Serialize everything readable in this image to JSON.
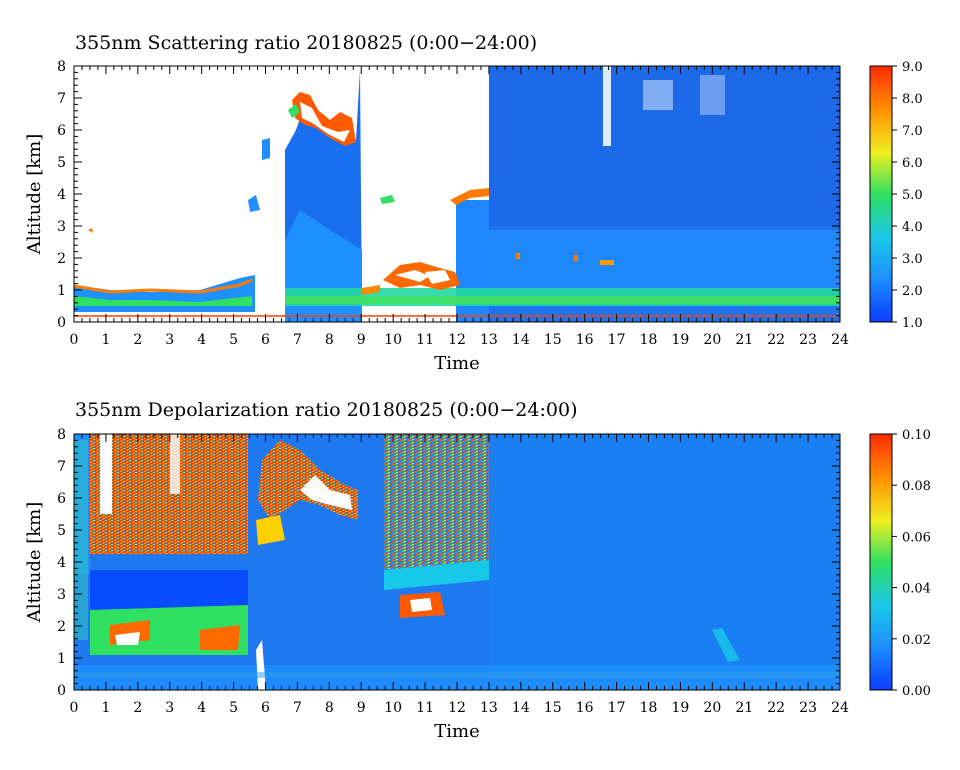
{
  "chart_data": [
    {
      "type": "heatmap",
      "title": "355nm Scattering ratio  20180825 (0:00−24:00)",
      "xlabel": "Time",
      "ylabel": "Altitude [km]",
      "xlim": [
        0,
        24
      ],
      "ylim": [
        0,
        8
      ],
      "x_ticks": [
        "0",
        "1",
        "2",
        "3",
        "4",
        "5",
        "6",
        "7",
        "8",
        "9",
        "10",
        "11",
        "12",
        "13",
        "14",
        "15",
        "16",
        "17",
        "18",
        "19",
        "20",
        "21",
        "22",
        "23",
        "24"
      ],
      "y_ticks": [
        "0",
        "1",
        "2",
        "3",
        "4",
        "5",
        "6",
        "7",
        "8"
      ],
      "colorbar": {
        "range": [
          1.0,
          9.0
        ],
        "ticks": [
          "1.0",
          "2.0",
          "3.0",
          "4.0",
          "5.0",
          "6.0",
          "7.0",
          "8.0",
          "9.0"
        ],
        "colors": [
          "#0a3cff",
          "#1e90ff",
          "#18c8e8",
          "#30e060",
          "#f0f020",
          "#ff9000",
          "#ff2a00"
        ]
      },
      "features": [
        {
          "t": [
            0.0,
            5.5
          ],
          "alt": [
            0.4,
            1.4
          ],
          "sr": 6.5
        },
        {
          "t": [
            6.6,
            9.0
          ],
          "alt": [
            0.0,
            7.8
          ],
          "sr": 2.3
        },
        {
          "t": [
            6.8,
            9.0
          ],
          "alt": [
            5.5,
            7.2
          ],
          "sr": 8.5
        },
        {
          "t": [
            9.7,
            12.0
          ],
          "alt": [
            1.0,
            2.2
          ],
          "sr": 7.5
        },
        {
          "t": [
            12.0,
            13.0
          ],
          "alt": [
            3.5,
            4.1
          ],
          "sr": 5.0
        },
        {
          "t": [
            13.0,
            24.0
          ],
          "alt": [
            0.0,
            8.0
          ],
          "sr": 2.0
        },
        {
          "t": [
            0.0,
            24.0
          ],
          "alt": [
            0.4,
            0.8
          ],
          "sr": 3.8
        }
      ]
    },
    {
      "type": "heatmap",
      "title": "355nm Depolarization ratio  20180825 (0:00−24:00)",
      "xlabel": "Time",
      "ylabel": "Altitude [km]",
      "xlim": [
        0,
        24
      ],
      "ylim": [
        0,
        8
      ],
      "x_ticks": [
        "0",
        "1",
        "2",
        "3",
        "4",
        "5",
        "6",
        "7",
        "8",
        "9",
        "10",
        "11",
        "12",
        "13",
        "14",
        "15",
        "16",
        "17",
        "18",
        "19",
        "20",
        "21",
        "22",
        "23",
        "24"
      ],
      "y_ticks": [
        "0",
        "1",
        "2",
        "3",
        "4",
        "5",
        "6",
        "7",
        "8"
      ],
      "colorbar": {
        "range": [
          0.0,
          0.1
        ],
        "ticks": [
          "0.00",
          "0.02",
          "0.04",
          "0.06",
          "0.08",
          "0.10"
        ],
        "colors": [
          "#0a3cff",
          "#1e90ff",
          "#18c8e8",
          "#30e060",
          "#f0f020",
          "#ff9000",
          "#ff2a00"
        ]
      },
      "features": [
        {
          "t": [
            0.0,
            5.5
          ],
          "alt": [
            4.5,
            8.0
          ],
          "dr": 0.09
        },
        {
          "t": [
            0.0,
            5.5
          ],
          "alt": [
            2.5,
            3.8
          ],
          "dr": 0.015
        },
        {
          "t": [
            0.4,
            5.3
          ],
          "alt": [
            1.1,
            2.6
          ],
          "dr": 0.045
        },
        {
          "t": [
            5.6,
            9.0
          ],
          "alt": [
            4.8,
            7.6
          ],
          "dr": 0.08
        },
        {
          "t": [
            9.5,
            13.0
          ],
          "alt": [
            3.5,
            8.0
          ],
          "dr": 0.07
        },
        {
          "t": [
            10.3,
            11.6
          ],
          "alt": [
            2.1,
            3.0
          ],
          "dr": 0.09
        },
        {
          "t": [
            13.0,
            24.0
          ],
          "alt": [
            0.0,
            8.0
          ],
          "dr": 0.015
        }
      ]
    }
  ]
}
